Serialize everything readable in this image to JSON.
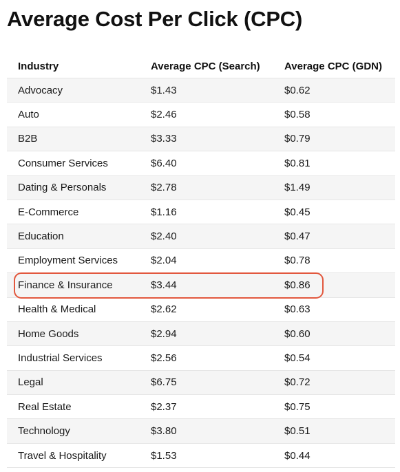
{
  "title": "Average Cost Per Click (CPC)",
  "table": {
    "headers": [
      "Industry",
      "Average CPC (Search)",
      "Average CPC (GDN)"
    ],
    "rows": [
      [
        "Advocacy",
        "$1.43",
        "$0.62"
      ],
      [
        "Auto",
        "$2.46",
        "$0.58"
      ],
      [
        "B2B",
        "$3.33",
        "$0.79"
      ],
      [
        "Consumer Services",
        "$6.40",
        "$0.81"
      ],
      [
        "Dating & Personals",
        "$2.78",
        "$1.49"
      ],
      [
        "E-Commerce",
        "$1.16",
        "$0.45"
      ],
      [
        "Education",
        "$2.40",
        "$0.47"
      ],
      [
        "Employment Services",
        "$2.04",
        "$0.78"
      ],
      [
        "Finance & Insurance",
        "$3.44",
        "$0.86"
      ],
      [
        "Health & Medical",
        "$2.62",
        "$0.63"
      ],
      [
        "Home Goods",
        "$2.94",
        "$0.60"
      ],
      [
        "Industrial Services",
        "$2.56",
        "$0.54"
      ],
      [
        "Legal",
        "$6.75",
        "$0.72"
      ],
      [
        "Real Estate",
        "$2.37",
        "$0.75"
      ],
      [
        "Technology",
        "$3.80",
        "$0.51"
      ],
      [
        "Travel & Hospitality",
        "$1.53",
        "$0.44"
      ]
    ]
  },
  "highlight": {
    "row": "Finance & Insurance",
    "color": "#e2583e"
  },
  "colors": {
    "stripe": "#f5f5f5",
    "text": "#1a1a1a"
  }
}
